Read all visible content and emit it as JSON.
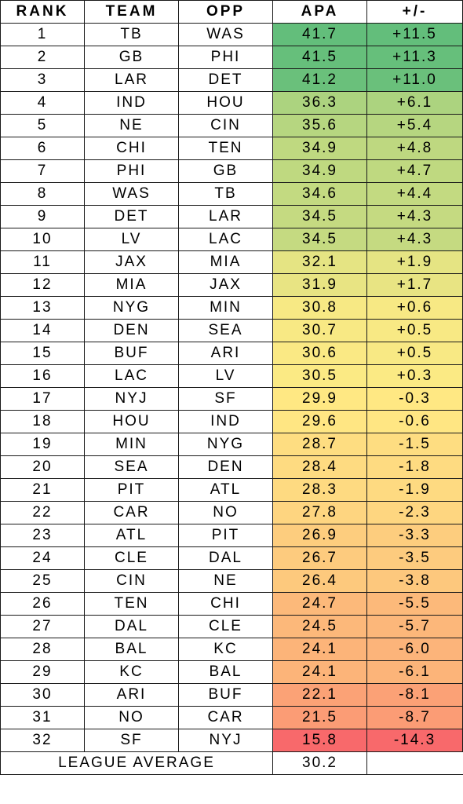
{
  "chart_data": {
    "type": "table",
    "columns": [
      "RANK",
      "TEAM",
      "OPP",
      "APA",
      "+/-"
    ],
    "rows": [
      [
        "1",
        "TB",
        "WAS",
        "41.7",
        "+11.5"
      ],
      [
        "2",
        "GB",
        "PHI",
        "41.5",
        "+11.3"
      ],
      [
        "3",
        "LAR",
        "DET",
        "41.2",
        "+11.0"
      ],
      [
        "4",
        "IND",
        "HOU",
        "36.3",
        "+6.1"
      ],
      [
        "5",
        "NE",
        "CIN",
        "35.6",
        "+5.4"
      ],
      [
        "6",
        "CHI",
        "TEN",
        "34.9",
        "+4.8"
      ],
      [
        "7",
        "PHI",
        "GB",
        "34.9",
        "+4.7"
      ],
      [
        "8",
        "WAS",
        "TB",
        "34.6",
        "+4.4"
      ],
      [
        "9",
        "DET",
        "LAR",
        "34.5",
        "+4.3"
      ],
      [
        "10",
        "LV",
        "LAC",
        "34.5",
        "+4.3"
      ],
      [
        "11",
        "JAX",
        "MIA",
        "32.1",
        "+1.9"
      ],
      [
        "12",
        "MIA",
        "JAX",
        "31.9",
        "+1.7"
      ],
      [
        "13",
        "NYG",
        "MIN",
        "30.8",
        "+0.6"
      ],
      [
        "14",
        "DEN",
        "SEA",
        "30.7",
        "+0.5"
      ],
      [
        "15",
        "BUF",
        "ARI",
        "30.6",
        "+0.5"
      ],
      [
        "16",
        "LAC",
        "LV",
        "30.5",
        "+0.3"
      ],
      [
        "17",
        "NYJ",
        "SF",
        "29.9",
        "-0.3"
      ],
      [
        "18",
        "HOU",
        "IND",
        "29.6",
        "-0.6"
      ],
      [
        "19",
        "MIN",
        "NYG",
        "28.7",
        "-1.5"
      ],
      [
        "20",
        "SEA",
        "DEN",
        "28.4",
        "-1.8"
      ],
      [
        "21",
        "PIT",
        "ATL",
        "28.3",
        "-1.9"
      ],
      [
        "22",
        "CAR",
        "NO",
        "27.8",
        "-2.3"
      ],
      [
        "23",
        "ATL",
        "PIT",
        "26.9",
        "-3.3"
      ],
      [
        "24",
        "CLE",
        "DAL",
        "26.7",
        "-3.5"
      ],
      [
        "25",
        "CIN",
        "NE",
        "26.4",
        "-3.8"
      ],
      [
        "26",
        "TEN",
        "CHI",
        "24.7",
        "-5.5"
      ],
      [
        "27",
        "DAL",
        "CLE",
        "24.5",
        "-5.7"
      ],
      [
        "28",
        "BAL",
        "KC",
        "24.1",
        "-6.0"
      ],
      [
        "29",
        "KC",
        "BAL",
        "24.1",
        "-6.1"
      ],
      [
        "30",
        "ARI",
        "BUF",
        "22.1",
        "-8.1"
      ],
      [
        "31",
        "NO",
        "CAR",
        "21.5",
        "-8.7"
      ],
      [
        "32",
        "SF",
        "NYJ",
        "15.8",
        "-14.3"
      ]
    ],
    "footer": {
      "label": "LEAGUE AVERAGE",
      "value": "30.2"
    },
    "color_scale": {
      "low": "#f8696b",
      "mid": "#ffeb84",
      "high": "#63be7b",
      "apa_min": 15.8,
      "apa_mid": 30.2,
      "apa_max": 41.7,
      "diff_min": -14.3,
      "diff_mid": 0,
      "diff_max": 11.5
    }
  }
}
